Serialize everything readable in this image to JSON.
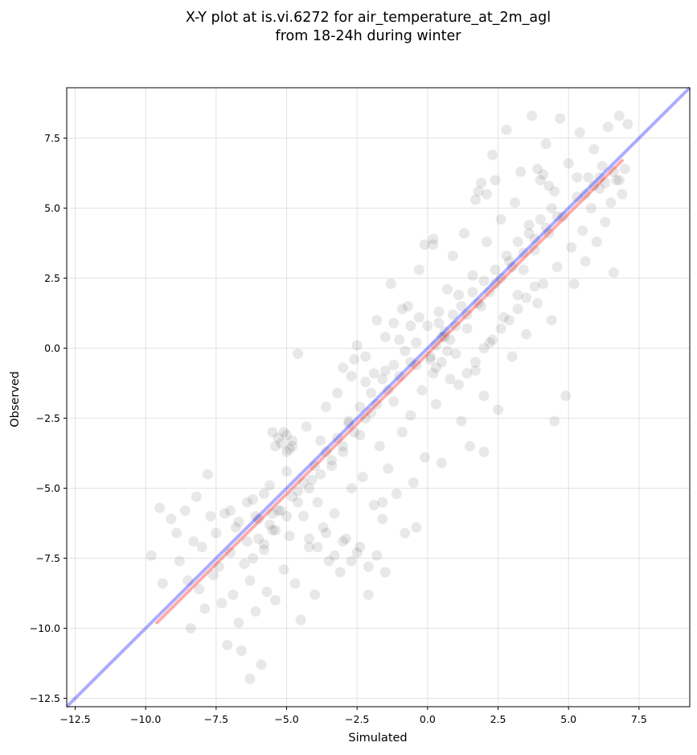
{
  "chart_data": {
    "type": "scatter",
    "title": "X-Y plot at is.vi.6272 for air_temperature_at_2m_agl",
    "subtitle": "from 18-24h during winter",
    "xlabel": "Simulated",
    "ylabel": "Observed",
    "xlim": [
      -12.8,
      9.3
    ],
    "ylim": [
      -12.8,
      9.3
    ],
    "xticks": [
      -12.5,
      -10.0,
      -7.5,
      -5.0,
      -2.5,
      0.0,
      2.5,
      5.0,
      7.5
    ],
    "yticks": [
      -12.5,
      -10.0,
      -7.5,
      -5.0,
      -2.5,
      0.0,
      2.5,
      5.0,
      7.5
    ],
    "xtick_labels": [
      "−12.5",
      "−10.0",
      "−7.5",
      "−5.0",
      "−2.5",
      "0.0",
      "2.5",
      "5.0",
      "7.5"
    ],
    "ytick_labels": [
      "−12.5",
      "−10.0",
      "−7.5",
      "−5.0",
      "−2.5",
      "0.0",
      "2.5",
      "5.0",
      "7.5"
    ],
    "grid": true,
    "point_color": "#000000",
    "point_alpha": 0.09,
    "identity_line": {
      "color": "#0000ff",
      "alpha": 0.33,
      "x": [
        -12.8,
        9.3
      ],
      "y": [
        -12.8,
        9.3
      ]
    },
    "fit_line": {
      "color": "#ff0000",
      "alpha": 0.33,
      "x": [
        -9.6,
        6.9
      ],
      "y": [
        -9.8,
        6.7
      ]
    },
    "points": [
      [
        -9.8,
        -7.4
      ],
      [
        -9.5,
        -5.7
      ],
      [
        -9.4,
        -8.4
      ],
      [
        -9.1,
        -6.1
      ],
      [
        -8.9,
        -6.6
      ],
      [
        -8.8,
        -7.6
      ],
      [
        -8.6,
        -5.8
      ],
      [
        -8.5,
        -8.3
      ],
      [
        -8.4,
        -10.0
      ],
      [
        -8.3,
        -6.9
      ],
      [
        -8.2,
        -5.3
      ],
      [
        -8.1,
        -8.6
      ],
      [
        -8.0,
        -7.1
      ],
      [
        -7.9,
        -9.3
      ],
      [
        -7.8,
        -4.5
      ],
      [
        -7.7,
        -6.0
      ],
      [
        -7.6,
        -8.1
      ],
      [
        -7.5,
        -6.6
      ],
      [
        -7.4,
        -7.8
      ],
      [
        -7.3,
        -9.1
      ],
      [
        -7.2,
        -5.9
      ],
      [
        -7.1,
        -10.6
      ],
      [
        -7.0,
        -7.3
      ],
      [
        -6.9,
        -8.8
      ],
      [
        -6.8,
        -6.4
      ],
      [
        -6.7,
        -9.8
      ],
      [
        -6.6,
        -10.8
      ],
      [
        -6.5,
        -7.7
      ],
      [
        -6.4,
        -6.9
      ],
      [
        -6.3,
        -8.3
      ],
      [
        -6.2,
        -5.4
      ],
      [
        -6.1,
        -9.4
      ],
      [
        -6.0,
        -6.1
      ],
      [
        -5.9,
        -11.3
      ],
      [
        -5.8,
        -7.2
      ],
      [
        -5.7,
        -8.7
      ],
      [
        -5.6,
        -4.9
      ],
      [
        -5.5,
        -6.5
      ],
      [
        -5.4,
        -9.0
      ],
      [
        -5.3,
        -5.8
      ],
      [
        -6.3,
        -11.8
      ],
      [
        -5.1,
        -7.9
      ],
      [
        -5.0,
        -4.4
      ],
      [
        -4.9,
        -6.7
      ],
      [
        -4.8,
        -3.5
      ],
      [
        -4.7,
        -8.4
      ],
      [
        -4.6,
        -5.1
      ],
      [
        -4.5,
        -9.7
      ],
      [
        -4.4,
        -6.0
      ],
      [
        -4.3,
        -2.8
      ],
      [
        -4.2,
        -7.1
      ],
      [
        -4.1,
        -4.7
      ],
      [
        -4.0,
        -8.8
      ],
      [
        -3.9,
        -5.5
      ],
      [
        -3.8,
        -3.3
      ],
      [
        -3.7,
        -6.4
      ],
      [
        -3.6,
        -2.1
      ],
      [
        -3.5,
        -7.6
      ],
      [
        -3.4,
        -4.2
      ],
      [
        -3.3,
        -5.9
      ],
      [
        -3.2,
        -1.6
      ],
      [
        -3.1,
        -8.0
      ],
      [
        -3.0,
        -3.7
      ],
      [
        -2.9,
        -6.8
      ],
      [
        -2.8,
        -2.6
      ],
      [
        -2.7,
        -5.0
      ],
      [
        -2.6,
        -0.4
      ],
      [
        -2.5,
        -7.3
      ],
      [
        -2.4,
        -3.1
      ],
      [
        -2.3,
        -4.6
      ],
      [
        -2.2,
        -1.2
      ],
      [
        -2.1,
        -8.8
      ],
      [
        -2.0,
        -2.3
      ],
      [
        -1.9,
        -5.6
      ],
      [
        -1.8,
        1.0
      ],
      [
        -1.7,
        -3.5
      ],
      [
        -1.6,
        -6.1
      ],
      [
        -1.5,
        -0.8
      ],
      [
        -1.4,
        -4.3
      ],
      [
        -1.3,
        2.3
      ],
      [
        -1.2,
        -1.9
      ],
      [
        -1.1,
        -5.2
      ],
      [
        -1.0,
        0.3
      ],
      [
        -0.9,
        -3.0
      ],
      [
        -0.8,
        -6.6
      ],
      [
        -0.7,
        1.5
      ],
      [
        -0.6,
        -2.4
      ],
      [
        -0.5,
        -4.8
      ],
      [
        -0.4,
        -0.6
      ],
      [
        -0.3,
        2.8
      ],
      [
        -0.2,
        -1.5
      ],
      [
        -0.1,
        -3.9
      ],
      [
        0.0,
        0.8
      ],
      [
        0.1,
        -0.3
      ],
      [
        0.2,
        3.7
      ],
      [
        0.3,
        -2.0
      ],
      [
        0.4,
        1.3
      ],
      [
        0.5,
        -4.1
      ],
      [
        0.6,
        0.4
      ],
      [
        0.7,
        2.1
      ],
      [
        0.8,
        -1.1
      ],
      [
        0.9,
        3.3
      ],
      [
        1.0,
        -0.2
      ],
      [
        1.1,
        1.9
      ],
      [
        1.2,
        -2.6
      ],
      [
        1.3,
        4.1
      ],
      [
        1.4,
        0.7
      ],
      [
        1.5,
        -3.5
      ],
      [
        1.6,
        2.6
      ],
      [
        1.7,
        -0.8
      ],
      [
        1.8,
        5.6
      ],
      [
        1.9,
        1.5
      ],
      [
        2.0,
        -1.7
      ],
      [
        2.1,
        3.8
      ],
      [
        2.2,
        0.2
      ],
      [
        2.3,
        6.9
      ],
      [
        2.4,
        2.3
      ],
      [
        2.5,
        -2.2
      ],
      [
        2.6,
        4.6
      ],
      [
        2.7,
        1.1
      ],
      [
        2.8,
        7.8
      ],
      [
        2.9,
        3.1
      ],
      [
        3.0,
        -0.3
      ],
      [
        3.1,
        5.2
      ],
      [
        3.2,
        1.9
      ],
      [
        3.3,
        6.3
      ],
      [
        3.4,
        2.8
      ],
      [
        3.5,
        0.5
      ],
      [
        3.6,
        4.4
      ],
      [
        3.7,
        8.3
      ],
      [
        3.8,
        3.5
      ],
      [
        3.9,
        1.6
      ],
      [
        4.0,
        6.0
      ],
      [
        4.1,
        2.3
      ],
      [
        4.2,
        7.3
      ],
      [
        4.3,
        4.1
      ],
      [
        4.4,
        1.0
      ],
      [
        4.5,
        5.6
      ],
      [
        4.6,
        2.9
      ],
      [
        4.7,
        8.2
      ],
      [
        4.8,
        4.7
      ],
      [
        4.9,
        -1.7
      ],
      [
        5.0,
        6.6
      ],
      [
        5.1,
        3.6
      ],
      [
        5.2,
        2.3
      ],
      [
        5.3,
        5.4
      ],
      [
        5.4,
        7.7
      ],
      [
        5.5,
        4.2
      ],
      [
        5.6,
        3.1
      ],
      [
        5.7,
        6.1
      ],
      [
        5.8,
        5.0
      ],
      [
        5.9,
        7.1
      ],
      [
        6.0,
        3.8
      ],
      [
        6.1,
        5.7
      ],
      [
        6.2,
        6.5
      ],
      [
        6.3,
        4.5
      ],
      [
        6.4,
        7.9
      ],
      [
        6.5,
        5.2
      ],
      [
        6.6,
        2.7
      ],
      [
        6.7,
        6.0
      ],
      [
        6.8,
        8.3
      ],
      [
        6.9,
        5.5
      ],
      [
        7.0,
        6.4
      ],
      [
        7.1,
        8.0
      ],
      [
        -4.6,
        -0.2
      ],
      [
        -1.6,
        -5.5
      ],
      [
        2.0,
        -3.7
      ],
      [
        4.5,
        -2.6
      ],
      [
        -0.4,
        -6.4
      ],
      [
        -5.5,
        -3.0
      ],
      [
        0.3,
        0.1
      ],
      [
        0.5,
        -0.5
      ],
      [
        0.2,
        -0.9
      ],
      [
        0.6,
        0.6
      ],
      [
        0.4,
        0.9
      ],
      [
        0.1,
        -0.4
      ],
      [
        0.7,
        -0.1
      ],
      [
        0.8,
        0.3
      ],
      [
        0.3,
        -0.7
      ],
      [
        0.5,
        0.4
      ],
      [
        0.9,
        1.2
      ],
      [
        1.0,
        0.8
      ],
      [
        1.2,
        1.5
      ],
      [
        1.4,
        1.2
      ],
      [
        1.6,
        2.0
      ],
      [
        1.8,
        1.6
      ],
      [
        2.0,
        2.4
      ],
      [
        2.2,
        2.0
      ],
      [
        2.4,
        2.8
      ],
      [
        2.6,
        2.5
      ],
      [
        2.8,
        3.3
      ],
      [
        3.0,
        2.9
      ],
      [
        3.2,
        3.8
      ],
      [
        3.4,
        3.4
      ],
      [
        3.6,
        4.1
      ],
      [
        3.8,
        3.9
      ],
      [
        4.0,
        4.6
      ],
      [
        4.2,
        4.3
      ],
      [
        4.4,
        5.0
      ],
      [
        4.6,
        4.7
      ],
      [
        -0.4,
        0.2
      ],
      [
        -0.6,
        -0.5
      ],
      [
        -0.8,
        -0.1
      ],
      [
        -1.0,
        -1.0
      ],
      [
        -1.2,
        -0.6
      ],
      [
        -1.4,
        -1.5
      ],
      [
        -1.6,
        -1.1
      ],
      [
        -1.8,
        -2.0
      ],
      [
        -2.0,
        -1.6
      ],
      [
        -2.2,
        -2.5
      ],
      [
        -2.4,
        -2.1
      ],
      [
        -2.6,
        -3.0
      ],
      [
        -2.8,
        -2.7
      ],
      [
        -3.0,
        -3.5
      ],
      [
        -3.2,
        -3.2
      ],
      [
        -3.4,
        -4.0
      ],
      [
        -3.6,
        -3.7
      ],
      [
        -3.8,
        -4.5
      ],
      [
        -4.0,
        -4.2
      ],
      [
        -4.2,
        -5.0
      ],
      [
        -4.4,
        -4.8
      ],
      [
        -4.6,
        -5.5
      ],
      [
        -4.8,
        -5.3
      ],
      [
        -5.0,
        -6.0
      ],
      [
        -5.2,
        -5.8
      ],
      [
        -5.4,
        -6.5
      ],
      [
        -5.6,
        -6.3
      ],
      [
        -5.8,
        -7.0
      ],
      [
        -6.0,
        -6.8
      ],
      [
        -6.2,
        -7.5
      ],
      [
        -5.0,
        -3.1
      ],
      [
        -5.2,
        -3.4
      ],
      [
        -4.9,
        -3.6
      ],
      [
        -5.3,
        -3.2
      ],
      [
        -5.1,
        -3.0
      ],
      [
        -4.8,
        -3.3
      ],
      [
        -5.4,
        -3.5
      ],
      [
        -5.0,
        -3.7
      ],
      [
        0.2,
        3.9
      ],
      [
        -0.1,
        3.7
      ],
      [
        1.9,
        5.9
      ],
      [
        2.1,
        5.5
      ],
      [
        1.7,
        5.3
      ],
      [
        2.4,
        6.0
      ],
      [
        3.9,
        6.4
      ],
      [
        4.1,
        6.2
      ],
      [
        4.3,
        5.8
      ],
      [
        5.3,
        6.1
      ],
      [
        5.6,
        5.5
      ],
      [
        5.9,
        5.8
      ],
      [
        6.1,
        6.1
      ],
      [
        6.3,
        5.9
      ],
      [
        6.6,
        6.3
      ],
      [
        6.8,
        6.0
      ],
      [
        -3.0,
        -0.7
      ],
      [
        -2.7,
        -1.0
      ],
      [
        -2.5,
        0.1
      ],
      [
        -2.2,
        -0.3
      ],
      [
        -1.9,
        -0.9
      ],
      [
        -1.5,
        0.4
      ],
      [
        -1.2,
        0.9
      ],
      [
        -0.9,
        1.4
      ],
      [
        -0.6,
        0.8
      ],
      [
        -0.3,
        1.1
      ],
      [
        1.1,
        -1.3
      ],
      [
        1.4,
        -0.9
      ],
      [
        1.7,
        -0.5
      ],
      [
        2.0,
        0.0
      ],
      [
        2.3,
        0.3
      ],
      [
        2.6,
        0.7
      ],
      [
        2.9,
        1.0
      ],
      [
        3.2,
        1.4
      ],
      [
        3.5,
        1.8
      ],
      [
        3.8,
        2.2
      ],
      [
        -7.0,
        -5.8
      ],
      [
        -6.7,
        -6.2
      ],
      [
        -6.4,
        -5.5
      ],
      [
        -6.1,
        -6.0
      ],
      [
        -5.8,
        -5.2
      ],
      [
        -5.5,
        -5.9
      ],
      [
        -4.2,
        -6.8
      ],
      [
        -3.9,
        -7.1
      ],
      [
        -3.6,
        -6.6
      ],
      [
        -3.3,
        -7.4
      ],
      [
        -3.0,
        -6.9
      ],
      [
        -2.7,
        -7.6
      ],
      [
        -2.4,
        -7.1
      ],
      [
        -2.1,
        -7.8
      ],
      [
        -1.8,
        -7.4
      ],
      [
        -1.5,
        -8.0
      ]
    ]
  }
}
